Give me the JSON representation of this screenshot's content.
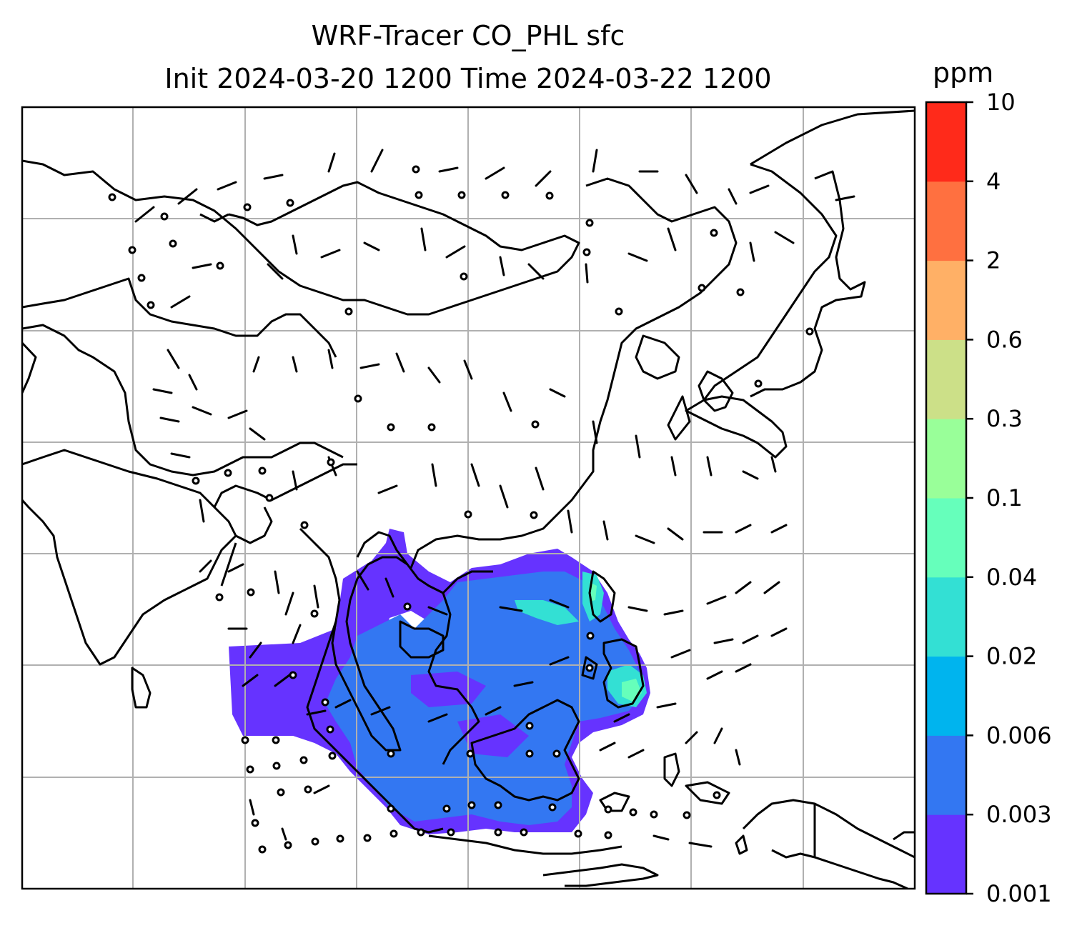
{
  "title_line1": "WRF-Tracer CO_PHL sfc",
  "title_line2": "Init 2024-03-20 1200 Time 2024-03-22 1200",
  "colorbar": {
    "unit": "ppm",
    "levels": [
      "0.001",
      "0.003",
      "0.006",
      "0.02",
      "0.04",
      "0.1",
      "0.3",
      "0.6",
      "2",
      "4",
      "10"
    ],
    "colors": [
      "#6633ff",
      "#3377f2",
      "#00b4ee",
      "#33e0d4",
      "#66ffbb",
      "#99ff99",
      "#cce088",
      "#ffb066",
      "#ff7040",
      "#ff2a1a"
    ]
  },
  "map": {
    "field": "CO_PHL surface tracer concentration",
    "gridlines": true,
    "wind_barbs": true
  }
}
